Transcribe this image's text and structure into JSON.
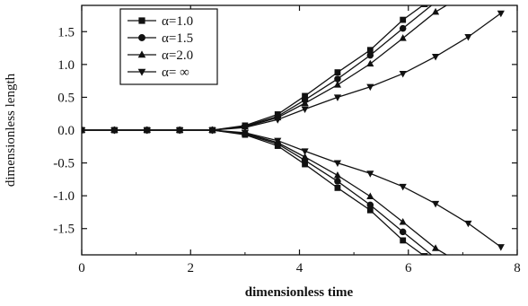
{
  "chart_data": {
    "type": "line",
    "xlabel": "dimensionless time",
    "ylabel": "dimensionless length",
    "xlim": [
      0,
      8
    ],
    "ylim": [
      -1.9,
      1.9
    ],
    "x_ticks": [
      "0",
      "2",
      "4",
      "6",
      "8"
    ],
    "y_ticks": [
      "-1.5",
      "-1.0",
      "-0.5",
      "0.0",
      "0.5",
      "1.0",
      "1.5"
    ],
    "x_tick_values": [
      0,
      2,
      4,
      6,
      8
    ],
    "y_tick_values": [
      -1.5,
      -1.0,
      -0.5,
      0.0,
      0.5,
      1.0,
      1.5
    ],
    "grid": false,
    "legend_position": "top-left",
    "series": [
      {
        "name": "α=1.0",
        "marker": "square",
        "branches": [
          {
            "x": [
              0,
              0.6,
              1.2,
              1.8,
              2.4,
              3.0,
              3.6,
              4.1,
              4.7,
              5.3,
              5.9,
              6.3
            ],
            "y": [
              0,
              0,
              0,
              0,
              0,
              0.07,
              0.24,
              0.52,
              0.88,
              1.22,
              1.68,
              1.92
            ]
          },
          {
            "x": [
              0,
              0.6,
              1.2,
              1.8,
              2.4,
              3.0,
              3.6,
              4.1,
              4.7,
              5.3,
              5.9,
              6.3
            ],
            "y": [
              0,
              0,
              0,
              0,
              0,
              -0.07,
              -0.24,
              -0.52,
              -0.88,
              -1.22,
              -1.68,
              -1.92
            ]
          }
        ]
      },
      {
        "name": "α=1.5",
        "marker": "circle",
        "branches": [
          {
            "x": [
              0,
              0.6,
              1.2,
              1.8,
              2.4,
              3.0,
              3.6,
              4.1,
              4.7,
              5.3,
              5.9,
              6.5
            ],
            "y": [
              0,
              0,
              0,
              0,
              0,
              0.06,
              0.21,
              0.46,
              0.78,
              1.14,
              1.55,
              1.95
            ]
          },
          {
            "x": [
              0,
              0.6,
              1.2,
              1.8,
              2.4,
              3.0,
              3.6,
              4.1,
              4.7,
              5.3,
              5.9,
              6.5
            ],
            "y": [
              0,
              0,
              0,
              0,
              0,
              -0.06,
              -0.21,
              -0.46,
              -0.78,
              -1.14,
              -1.55,
              -1.95
            ]
          }
        ]
      },
      {
        "name": "α=2.0",
        "marker": "triangle-up",
        "branches": [
          {
            "x": [
              0,
              0.6,
              1.2,
              1.8,
              2.4,
              3.0,
              3.6,
              4.1,
              4.7,
              5.3,
              5.9,
              6.5,
              6.8
            ],
            "y": [
              0,
              0,
              0,
              0,
              0,
              0.05,
              0.19,
              0.41,
              0.69,
              1.01,
              1.4,
              1.8,
              1.95
            ]
          },
          {
            "x": [
              0,
              0.6,
              1.2,
              1.8,
              2.4,
              3.0,
              3.6,
              4.1,
              4.7,
              5.3,
              5.9,
              6.5,
              6.8
            ],
            "y": [
              0,
              0,
              0,
              0,
              0,
              -0.05,
              -0.19,
              -0.41,
              -0.69,
              -1.01,
              -1.4,
              -1.8,
              -1.95
            ]
          }
        ]
      },
      {
        "name": "α= ∞",
        "marker": "triangle-down",
        "branches": [
          {
            "x": [
              0,
              0.6,
              1.2,
              1.8,
              2.4,
              3.0,
              3.6,
              4.1,
              4.7,
              5.3,
              5.9,
              6.5,
              7.1,
              7.7
            ],
            "y": [
              0,
              0,
              0,
              0,
              0,
              0.04,
              0.16,
              0.32,
              0.5,
              0.66,
              0.86,
              1.12,
              1.42,
              1.78
            ]
          },
          {
            "x": [
              0,
              0.6,
              1.2,
              1.8,
              2.4,
              3.0,
              3.6,
              4.1,
              4.7,
              5.3,
              5.9,
              6.5,
              7.1,
              7.7
            ],
            "y": [
              0,
              0,
              0,
              0,
              0,
              -0.04,
              -0.16,
              -0.32,
              -0.5,
              -0.66,
              -0.86,
              -1.12,
              -1.42,
              -1.78
            ]
          }
        ]
      }
    ]
  }
}
